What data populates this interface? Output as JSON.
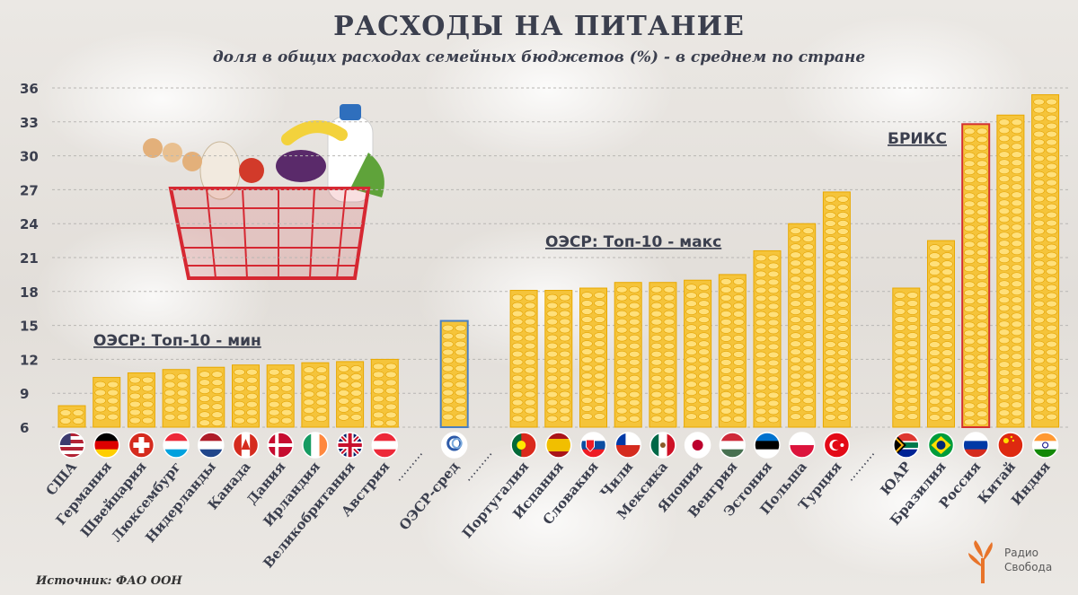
{
  "title": "РАСХОДЫ НА ПИТАНИЕ",
  "subtitle": "доля в общих расходах семейных бюджетов (%) - в среднем по стране",
  "source": "Источник: ФАО ООН",
  "logo": {
    "line1": "Радио",
    "line2": "Свобода"
  },
  "colors": {
    "bar_fill": "#f5c43a",
    "bar_edge": "#e8a800",
    "highlight_oecd": "#4a7fc0",
    "highlight_russia": "#d43030",
    "text": "#3b3f4e",
    "gridline": "#b8b6b3"
  },
  "groups": {
    "oecd_min": "ОЭСР: Топ-10 - мин",
    "oecd_max": "ОЭСР: Топ-10 - макс",
    "brics": "БРИКС"
  },
  "chart_data": {
    "type": "bar",
    "title": "РАСХОДЫ НА ПИТАНИЕ",
    "subtitle": "доля в общих расходах семейных бюджетов (%) - в среднем по стране",
    "ylim": [
      6,
      36
    ],
    "yticks": [
      6,
      9,
      12,
      15,
      18,
      21,
      24,
      27,
      30,
      33,
      36
    ],
    "grid": true,
    "categories": [
      "США",
      "Германия",
      "Швейцария",
      "Люксембург",
      "Нидерланды",
      "Канада",
      "Дания",
      "Ирландия",
      "Великобритания",
      "Австрия",
      "",
      "ОЭСР-сред",
      "",
      "Португалия",
      "Испания",
      "Словакия",
      "Чили",
      "Мексика",
      "Япония",
      "Венгрия",
      "Эстония",
      "Польша",
      "Турция",
      "",
      "ЮАР",
      "Бразилия",
      "Россия",
      "Китай",
      "Индия"
    ],
    "values": [
      7.9,
      10.4,
      10.8,
      11.1,
      11.3,
      11.5,
      11.5,
      11.7,
      11.8,
      12.0,
      null,
      15.4,
      null,
      18.1,
      18.1,
      18.3,
      18.8,
      18.8,
      19.0,
      19.5,
      21.6,
      24.0,
      26.8,
      null,
      18.3,
      22.5,
      32.8,
      33.6,
      35.4
    ],
    "flags": [
      "us",
      "de",
      "ch",
      "lu",
      "nl",
      "ca",
      "dk",
      "ie",
      "gb",
      "at",
      "",
      "oecd",
      "",
      "pt",
      "es",
      "sk",
      "cl",
      "mx",
      "jp",
      "hu",
      "ee",
      "pl",
      "tr",
      "",
      "za",
      "br",
      "ru",
      "cn",
      "in"
    ],
    "highlight": {
      "ОЭСР-сред": "oecd",
      "Россия": "russia"
    }
  }
}
